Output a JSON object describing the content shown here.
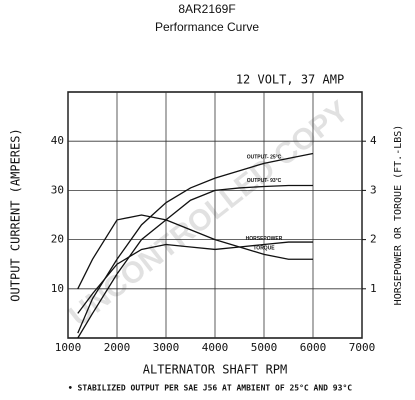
{
  "chart_data": {
    "type": "line",
    "title": "8AR2169F",
    "subtitle": "Performance Curve",
    "annotation": "12 VOLT, 37 AMP",
    "watermark": "UNCONTROLLED COPY",
    "xlabel": "ALTERNATOR SHAFT RPM",
    "ylabel": "OUTPUT CURRENT (AMPERES)",
    "y2label": "HORSEPOWER OR TORQUE (FT.-LBS)",
    "footnote": "• STABILIZED OUTPUT PER SAE J56 AT AMBIENT OF 25°C AND 93°C",
    "x": [
      1200,
      1500,
      2000,
      2500,
      3000,
      3500,
      4000,
      4500,
      5000,
      5500,
      6000
    ],
    "xlim": [
      1000,
      7000
    ],
    "xticks": [
      1000,
      2000,
      3000,
      4000,
      5000,
      6000,
      7000
    ],
    "ylim": [
      0,
      50
    ],
    "yticks": [
      10,
      20,
      30,
      40
    ],
    "y2lim": [
      0,
      5
    ],
    "y2ticks": [
      1,
      2,
      3,
      4
    ],
    "grid": true,
    "series": [
      {
        "name": "OUTPUT- 25°C",
        "color": "#111111",
        "values": [
          1,
          8,
          16,
          23,
          27.5,
          30.5,
          32.5,
          34,
          35.5,
          36.5,
          37.5
        ]
      },
      {
        "name": "OUTPUT- 93°C",
        "color": "#111111",
        "values": [
          0,
          5,
          13,
          20,
          24,
          28,
          30,
          30.5,
          30.8,
          31,
          31
        ]
      },
      {
        "name": "HORSEPOWER",
        "color": "#111111",
        "axis": "y2",
        "values": [
          0.5,
          0.9,
          1.5,
          1.8,
          1.9,
          1.85,
          1.8,
          1.85,
          1.9,
          1.95,
          1.95
        ]
      },
      {
        "name": "TORQUE",
        "color": "#111111",
        "axis": "y2",
        "values": [
          1,
          1.6,
          2.4,
          2.5,
          2.4,
          2.2,
          2,
          1.85,
          1.7,
          1.6,
          1.6
        ]
      }
    ]
  }
}
